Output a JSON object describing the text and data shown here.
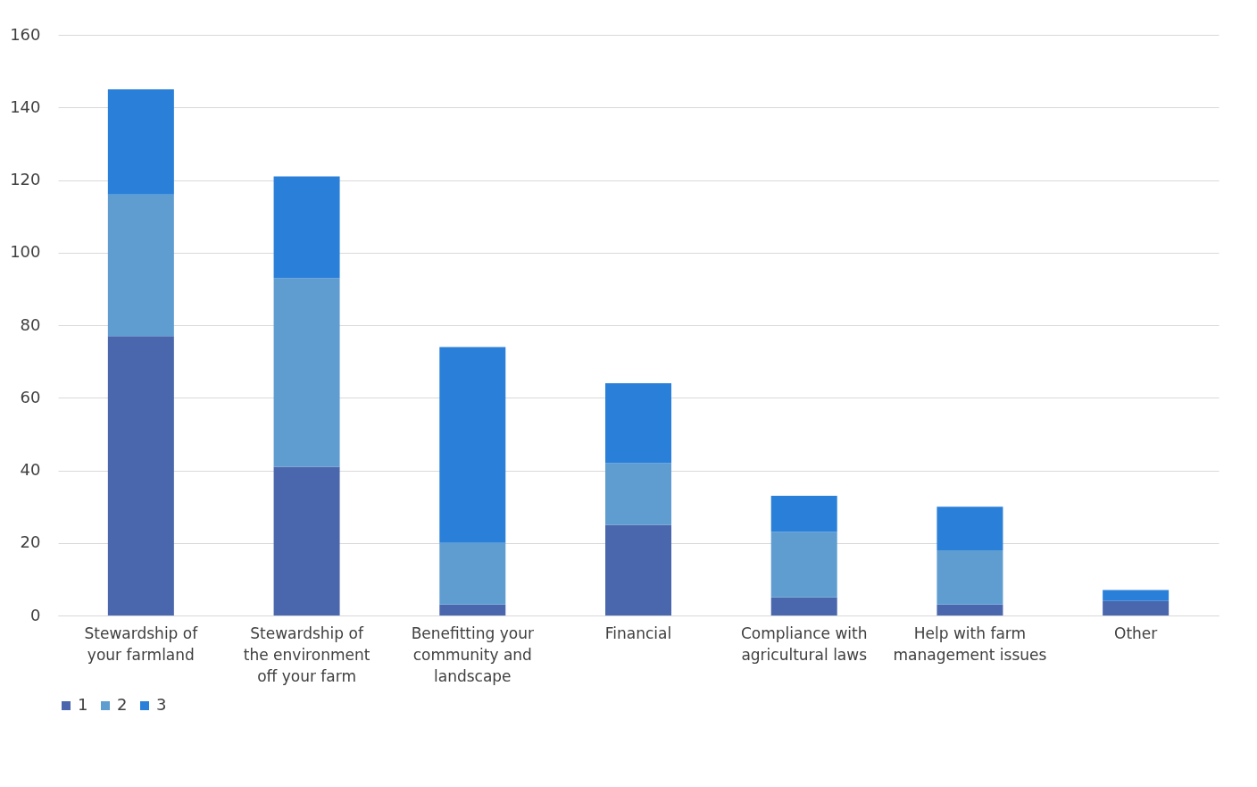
{
  "chart_data": {
    "type": "bar",
    "stacked": true,
    "categories": [
      "Stewardship of your farmland",
      "Stewardship of the environment off your farm",
      "Benefitting your community and landscape",
      "Financial",
      "Compliance with agricultural laws",
      "Help with farm management issues",
      "Other"
    ],
    "series": [
      {
        "name": "1",
        "color": "#4a67ad",
        "values": [
          77,
          41,
          3,
          25,
          5,
          3,
          4
        ]
      },
      {
        "name": "2",
        "color": "#5f9dd1",
        "values": [
          39,
          52,
          17,
          17,
          18,
          15,
          0
        ]
      },
      {
        "name": "3",
        "color": "#2a7fd8",
        "values": [
          29,
          28,
          54,
          22,
          10,
          12,
          3
        ]
      }
    ],
    "ylim": [
      0,
      160
    ],
    "yticks": [
      0,
      20,
      40,
      60,
      80,
      100,
      120,
      140,
      160
    ],
    "grid": "y",
    "legend": "bottom"
  }
}
